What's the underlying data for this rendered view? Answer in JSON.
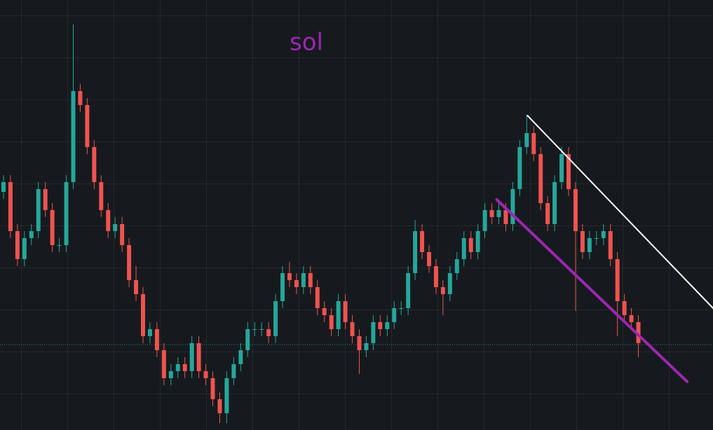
{
  "chart_data": {
    "type": "candlestick",
    "title": "sol",
    "title_color": "#9c27b0",
    "up_color": "#26a69a",
    "down_color": "#ef5350",
    "xlim": [
      -0.5,
      101.7
    ],
    "ylim": [
      0,
      614
    ],
    "open": [
      340,
      354,
      284,
      244,
      274,
      284,
      344,
      314,
      264,
      264,
      354,
      484,
      464,
      404,
      354,
      314,
      284,
      294,
      264,
      214,
      194,
      134,
      144,
      114,
      74,
      84,
      94,
      84,
      124,
      84,
      74,
      44,
      24,
      74,
      94,
      114,
      144,
      144,
      144,
      134,
      184,
      224,
      214,
      204,
      224,
      204,
      174,
      164,
      144,
      184,
      154,
      134,
      114,
      124,
      154,
      144,
      154,
      174,
      174,
      224,
      284,
      254,
      234,
      204,
      194,
      224,
      244,
      274,
      254,
      284,
      314,
      304,
      314,
      294,
      344,
      404,
      424,
      394,
      324,
      294,
      354,
      394,
      344,
      284,
      254,
      274,
      274,
      284,
      244,
      184,
      164,
      154
    ],
    "high": [
      364,
      364,
      294,
      284,
      294,
      354,
      354,
      324,
      274,
      364,
      579,
      494,
      474,
      414,
      364,
      324,
      304,
      304,
      274,
      234,
      204,
      154,
      154,
      124,
      94,
      104,
      104,
      134,
      134,
      94,
      84,
      54,
      84,
      104,
      124,
      154,
      154,
      154,
      154,
      194,
      234,
      240,
      224,
      234,
      234,
      214,
      184,
      174,
      194,
      194,
      164,
      144,
      134,
      164,
      164,
      164,
      184,
      184,
      234,
      300,
      294,
      264,
      244,
      214,
      234,
      254,
      284,
      284,
      294,
      324,
      324,
      324,
      324,
      354,
      414,
      450,
      434,
      404,
      334,
      364,
      404,
      404,
      354,
      294,
      284,
      284,
      294,
      294,
      254,
      194,
      174,
      164
    ],
    "low": [
      330,
      274,
      234,
      234,
      264,
      274,
      304,
      254,
      254,
      254,
      344,
      454,
      394,
      344,
      304,
      274,
      274,
      254,
      204,
      184,
      124,
      124,
      104,
      64,
      64,
      74,
      74,
      74,
      74,
      64,
      34,
      10,
      10,
      64,
      84,
      104,
      134,
      134,
      124,
      124,
      174,
      204,
      194,
      194,
      194,
      164,
      154,
      134,
      134,
      144,
      124,
      80,
      104,
      114,
      134,
      134,
      144,
      164,
      164,
      214,
      244,
      224,
      194,
      164,
      184,
      214,
      234,
      244,
      244,
      274,
      294,
      294,
      284,
      284,
      334,
      394,
      384,
      314,
      284,
      284,
      344,
      334,
      170,
      244,
      244,
      264,
      264,
      234,
      134,
      154,
      144,
      104
    ],
    "close": [
      354,
      284,
      244,
      274,
      284,
      344,
      314,
      264,
      264,
      354,
      484,
      464,
      404,
      354,
      314,
      284,
      294,
      264,
      214,
      194,
      134,
      144,
      114,
      74,
      84,
      94,
      84,
      124,
      84,
      74,
      44,
      24,
      74,
      94,
      114,
      144,
      144,
      144,
      134,
      184,
      224,
      214,
      204,
      224,
      204,
      174,
      164,
      144,
      184,
      154,
      134,
      114,
      124,
      154,
      144,
      154,
      174,
      174,
      224,
      284,
      254,
      234,
      204,
      194,
      224,
      244,
      274,
      254,
      284,
      314,
      304,
      314,
      294,
      344,
      404,
      424,
      394,
      324,
      294,
      354,
      394,
      344,
      284,
      254,
      274,
      274,
      284,
      244,
      184,
      164,
      154,
      124
    ],
    "hline": {
      "value": 122,
      "color": "#26a69a"
    },
    "trendlines": [
      {
        "color": "#ffffff",
        "x": [
          75.1,
          101.7
        ],
        "y": [
          449,
          174
        ]
      },
      {
        "color": "#9c27b0",
        "x": [
          70.7,
          98.0
        ],
        "y": [
          329,
          69
        ]
      }
    ]
  }
}
